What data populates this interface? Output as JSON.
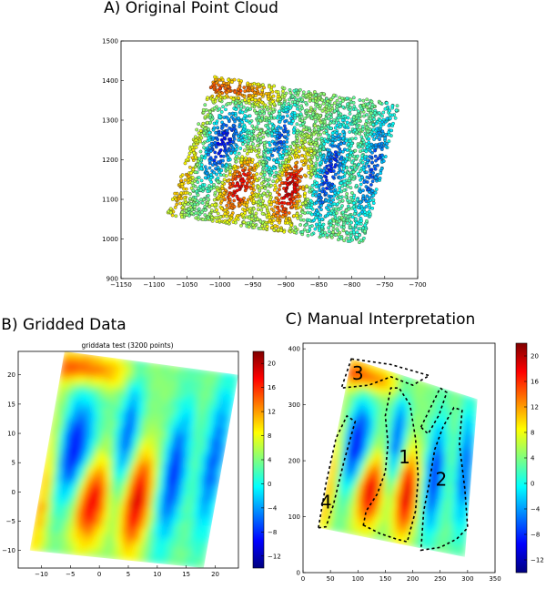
{
  "chart_data": [
    {
      "type": "scatter",
      "title": "A) Original Point Cloud",
      "xlabel": "",
      "ylabel": "",
      "xlim": [
        -1150,
        -700
      ],
      "ylim": [
        900,
        1500
      ],
      "xticks": [
        "−1150",
        "−1100",
        "−1050",
        "−1000",
        "−950",
        "−900",
        "−850",
        "−800",
        "−750",
        "−700"
      ],
      "yticks": [
        "900",
        "1000",
        "1100",
        "1200",
        "1300",
        "1400",
        "1500"
      ],
      "footprint_corners": [
        [
          -1080,
          1060
        ],
        [
          -1008,
          1410
        ],
        [
          -728,
          1340
        ],
        [
          -782,
          988
        ]
      ],
      "point_count_visible": "dense, several thousand",
      "grid": false
    },
    {
      "type": "heatmap",
      "title": "B) Gridded Data",
      "subtitle": "griddata test (3200 points)",
      "xlabel": "",
      "ylabel": "",
      "xlim": [
        -14,
        24
      ],
      "ylim": [
        -13,
        24
      ],
      "xticks": [
        "−10",
        "−5",
        "0",
        "5",
        "10",
        "15",
        "20"
      ],
      "yticks": [
        "−10",
        "−5",
        "0",
        "5",
        "10",
        "15",
        "20"
      ],
      "colorbar_ticks": [
        "−12",
        "−8",
        "−4",
        "0",
        "4",
        "8",
        "12",
        "16",
        "20"
      ],
      "colorbar_range": [
        -14,
        22
      ],
      "colormap": "jet",
      "footprint_corners": [
        [
          -12,
          -10
        ],
        [
          -6,
          24
        ],
        [
          24,
          20
        ],
        [
          18,
          -13
        ]
      ]
    },
    {
      "type": "heatmap",
      "title": "C) Manual Interpretation",
      "xlabel": "",
      "ylabel": "",
      "xlim": [
        0,
        350
      ],
      "ylim": [
        0,
        410
      ],
      "xticks": [
        "0",
        "50",
        "100",
        "150",
        "200",
        "250",
        "300",
        "350"
      ],
      "yticks": [
        "0",
        "100",
        "200",
        "300",
        "400"
      ],
      "colorbar_ticks": [
        "−12",
        "−8",
        "−4",
        "0",
        "4",
        "8",
        "12",
        "16",
        "20"
      ],
      "colorbar_range": [
        -14,
        22
      ],
      "colormap": "jet",
      "footprint_corners": [
        [
          28,
          80
        ],
        [
          88,
          382
        ],
        [
          318,
          310
        ],
        [
          295,
          28
        ]
      ],
      "region_labels": [
        {
          "label": "1",
          "x": 185,
          "y": 195
        },
        {
          "label": "2",
          "x": 252,
          "y": 155
        },
        {
          "label": "3",
          "x": 100,
          "y": 345
        },
        {
          "label": "4",
          "x": 42,
          "y": 115
        }
      ]
    }
  ]
}
